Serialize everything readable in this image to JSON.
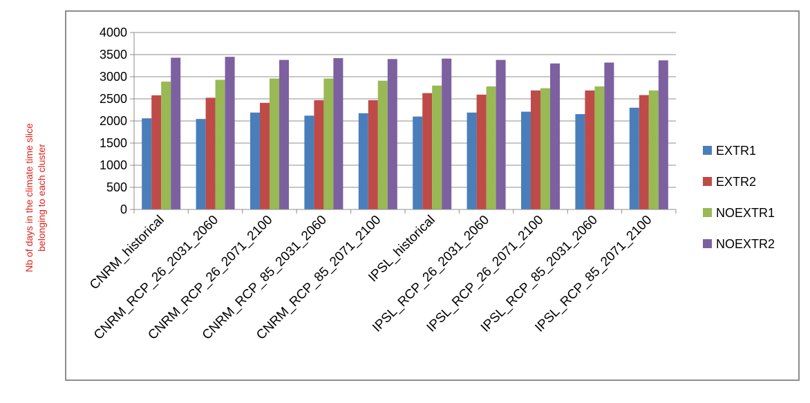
{
  "chart_data": {
    "type": "bar",
    "ylabel_lines": [
      "Nb of days in the climate time slice",
      "belonging to each cluster"
    ],
    "ylim": [
      0,
      4000
    ],
    "yticks": [
      0,
      500,
      1000,
      1500,
      2000,
      2500,
      3000,
      3500,
      4000
    ],
    "grid": true,
    "legend_position": "right",
    "categories": [
      "CNRM_historical",
      "CNRM_RCP_26_2031_2060",
      "CNRM_RCP_26_2071_2100",
      "CNRM_RCP_85_2031_2060",
      "CNRM_RCP_85_2071_2100",
      "IPSL_historical",
      "IPSL_RCP_26_2031_2060",
      "IPSL_RCP_26_2071_2100",
      "IPSL_RCP_85_2031_2060",
      "IPSL_RCP_85_2071_2100"
    ],
    "series": [
      {
        "name": "EXTR1",
        "color": "#4a7ebb",
        "values": [
          2060,
          2045,
          2190,
          2120,
          2175,
          2100,
          2190,
          2210,
          2155,
          2300
        ]
      },
      {
        "name": "EXTR2",
        "color": "#be4b48",
        "values": [
          2580,
          2525,
          2410,
          2470,
          2470,
          2630,
          2595,
          2690,
          2690,
          2585
        ]
      },
      {
        "name": "NOEXTR1",
        "color": "#98b954",
        "values": [
          2890,
          2930,
          2960,
          2960,
          2910,
          2800,
          2780,
          2740,
          2780,
          2690
        ]
      },
      {
        "name": "NOEXTR2",
        "color": "#7d60a0",
        "values": [
          3430,
          3450,
          3380,
          3420,
          3400,
          3410,
          3380,
          3300,
          3320,
          3370
        ]
      }
    ]
  }
}
